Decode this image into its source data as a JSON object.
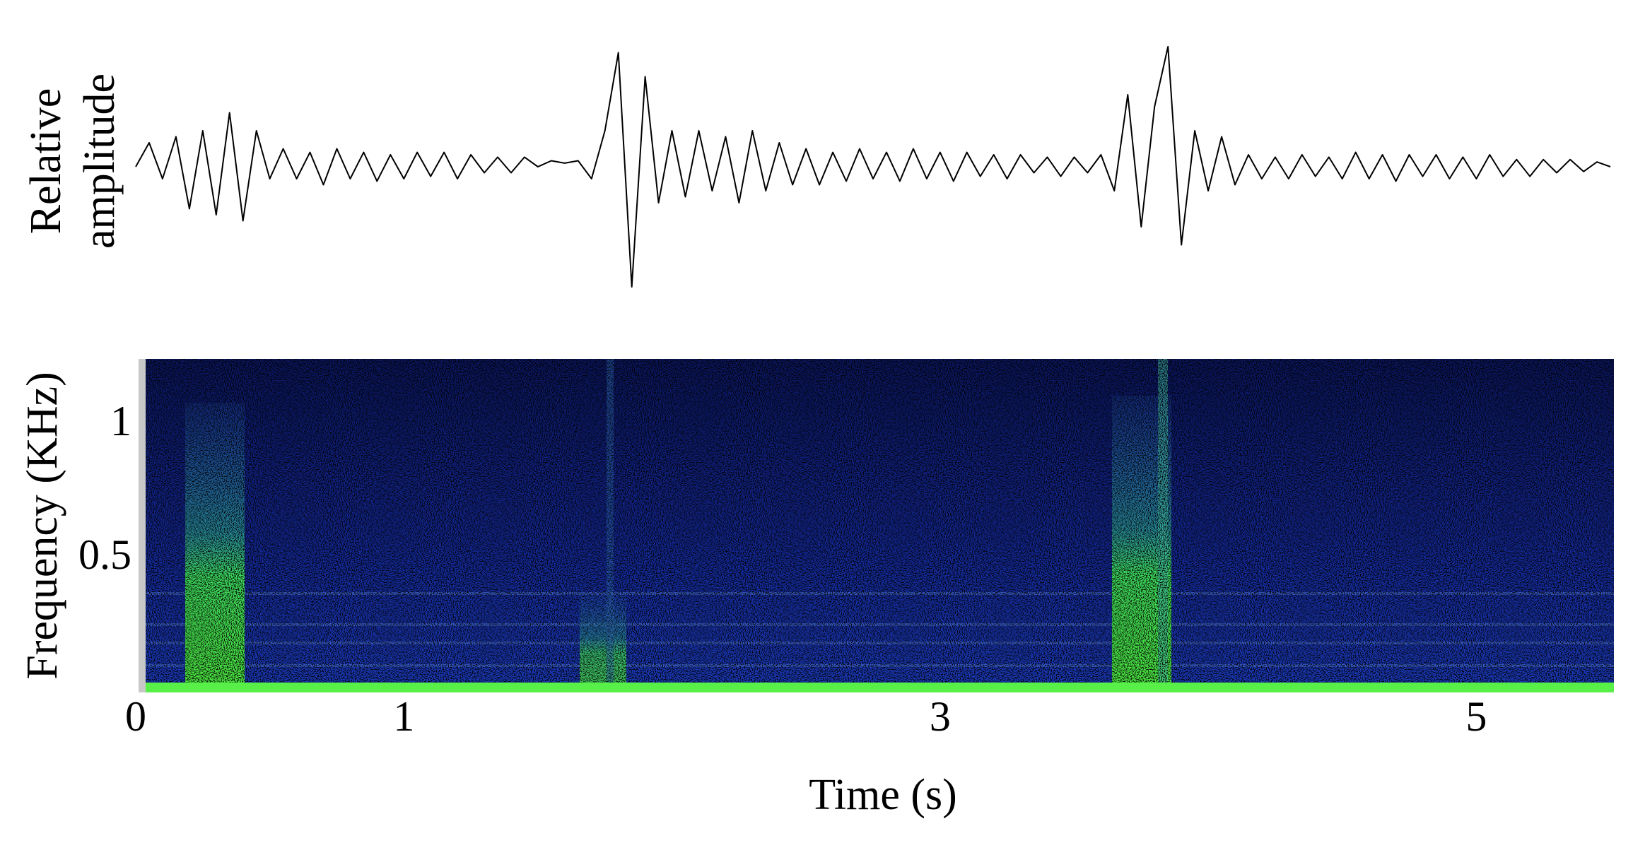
{
  "chart_data": [
    {
      "type": "line",
      "ylabel": [
        "Relative",
        "amplitude"
      ],
      "ylim": [
        -1,
        1
      ],
      "xlim": [
        0,
        5.5
      ],
      "color": "#000000",
      "x": [
        0,
        0.05,
        0.1,
        0.15,
        0.2,
        0.25,
        0.3,
        0.35,
        0.4,
        0.45,
        0.5,
        0.55,
        0.6,
        0.65,
        0.7,
        0.75,
        0.8,
        0.85,
        0.9,
        0.95,
        1,
        1.05,
        1.1,
        1.15,
        1.2,
        1.25,
        1.3,
        1.35,
        1.4,
        1.45,
        1.5,
        1.55,
        1.6,
        1.65,
        1.7,
        1.75,
        1.8,
        1.85,
        1.9,
        1.95,
        2,
        2.05,
        2.1,
        2.15,
        2.2,
        2.25,
        2.3,
        2.35,
        2.4,
        2.45,
        2.5,
        2.55,
        2.6,
        2.65,
        2.7,
        2.75,
        2.8,
        2.85,
        2.9,
        2.95,
        3,
        3.05,
        3.1,
        3.15,
        3.2,
        3.25,
        3.3,
        3.35,
        3.4,
        3.45,
        3.5,
        3.55,
        3.6,
        3.65,
        3.7,
        3.75,
        3.8,
        3.85,
        3.9,
        3.95,
        4,
        4.05,
        4.1,
        4.15,
        4.2,
        4.25,
        4.3,
        4.35,
        4.4,
        4.45,
        4.5,
        4.55,
        4.6,
        4.65,
        4.7,
        4.75,
        4.8,
        4.85,
        4.9,
        4.95,
        5,
        5.05,
        5.1,
        5.15,
        5.2,
        5.25,
        5.3,
        5.35,
        5.4,
        5.45,
        5.5
      ],
      "values": [
        0,
        0.2,
        -0.1,
        0.25,
        -0.35,
        0.3,
        -0.4,
        0.45,
        -0.45,
        0.3,
        -0.1,
        0.15,
        -0.1,
        0.12,
        -0.15,
        0.15,
        -0.1,
        0.12,
        -0.12,
        0.1,
        -0.1,
        0.12,
        -0.08,
        0.12,
        -0.1,
        0.1,
        -0.05,
        0.08,
        -0.05,
        0.08,
        0,
        0.05,
        0.03,
        0.05,
        -0.1,
        0.3,
        0.95,
        -1,
        0.75,
        -0.3,
        0.3,
        -0.25,
        0.3,
        -0.2,
        0.25,
        -0.3,
        0.3,
        -0.2,
        0.2,
        -0.15,
        0.15,
        -0.15,
        0.12,
        -0.12,
        0.15,
        -0.1,
        0.12,
        -0.12,
        0.15,
        -0.1,
        0.12,
        -0.12,
        0.12,
        -0.08,
        0.1,
        -0.1,
        0.1,
        -0.05,
        0.08,
        -0.08,
        0.08,
        -0.05,
        0.1,
        -0.2,
        0.6,
        -0.5,
        0.5,
        1,
        -0.65,
        0.3,
        -0.2,
        0.25,
        -0.15,
        0.1,
        -0.1,
        0.08,
        -0.1,
        0.1,
        -0.08,
        0.08,
        -0.1,
        0.12,
        -0.1,
        0.1,
        -0.12,
        0.1,
        -0.08,
        0.1,
        -0.1,
        0.08,
        -0.1,
        0.1,
        -0.08,
        0.06,
        -0.08,
        0.06,
        -0.05,
        0.06,
        -0.04,
        0.04,
        0
      ]
    },
    {
      "type": "spectrogram",
      "xlabel": "Time (s)",
      "ylabel": "Frequency (KHz)",
      "xlim": [
        0,
        5.5
      ],
      "ylim": [
        0,
        1.25
      ],
      "xticks": [
        0,
        1,
        3,
        5
      ],
      "yticks": [
        0.5,
        1
      ]
    }
  ]
}
